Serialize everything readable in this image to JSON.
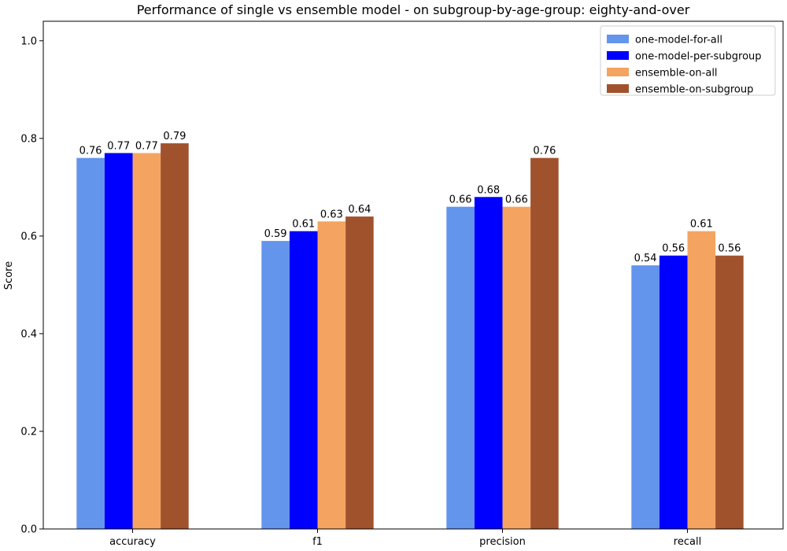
{
  "chart_data": {
    "type": "bar",
    "title": "Performance of single vs ensemble model - on subgroup-by-age-group: eighty-and-over",
    "xlabel": "",
    "ylabel": "Score",
    "ylim": [
      0,
      1.04
    ],
    "yticks": [
      0.0,
      0.2,
      0.4,
      0.6,
      0.8,
      1.0
    ],
    "ytick_labels": [
      "0.0",
      "0.2",
      "0.4",
      "0.6",
      "0.8",
      "1.0"
    ],
    "grid": false,
    "legend_position": "top-right",
    "categories": [
      "accuracy",
      "f1",
      "precision",
      "recall"
    ],
    "series": [
      {
        "name": "one-model-for-all",
        "color": "#6495ED",
        "values": [
          0.76,
          0.59,
          0.66,
          0.54
        ],
        "labels": [
          "0.76",
          "0.59",
          "0.66",
          "0.54"
        ]
      },
      {
        "name": "one-model-per-subgroup",
        "color": "#0000FF",
        "values": [
          0.77,
          0.61,
          0.68,
          0.56
        ],
        "labels": [
          "0.77",
          "0.61",
          "0.68",
          "0.56"
        ]
      },
      {
        "name": "ensemble-on-all",
        "color": "#F4A460",
        "values": [
          0.77,
          0.63,
          0.66,
          0.61
        ],
        "labels": [
          "0.77",
          "0.63",
          "0.66",
          "0.61"
        ]
      },
      {
        "name": "ensemble-on-subgroup",
        "color": "#A0522D",
        "values": [
          0.79,
          0.64,
          0.76,
          0.56
        ],
        "labels": [
          "0.79",
          "0.64",
          "0.76",
          "0.56"
        ]
      }
    ]
  }
}
